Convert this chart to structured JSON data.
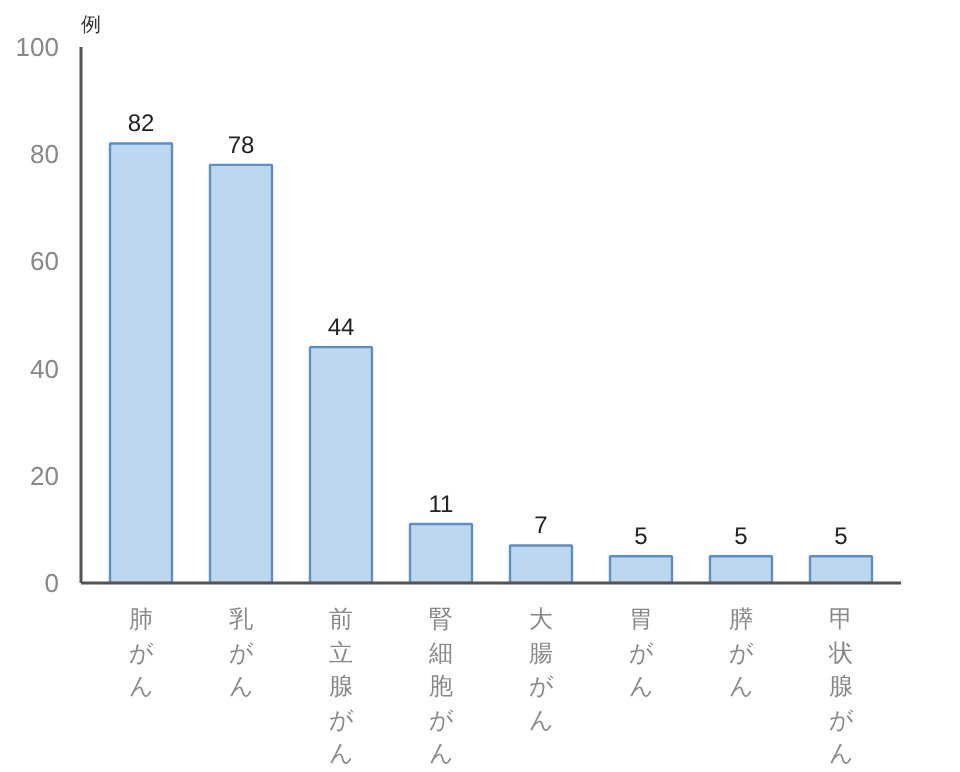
{
  "chart_data": {
    "type": "bar",
    "ylabel": "例",
    "categories": [
      "肺がん",
      "乳がん",
      "前立腺がん",
      "腎細胞がん",
      "大腸がん",
      "胃がん",
      "膵がん",
      "甲状腺がん"
    ],
    "values": [
      82,
      78,
      44,
      11,
      7,
      5,
      5,
      5
    ],
    "color": "#bdd7ee",
    "ylim": [
      0,
      100
    ],
    "yticks": [
      0,
      20,
      40,
      60,
      80,
      100
    ],
    "grid": false,
    "data_labels": true
  }
}
